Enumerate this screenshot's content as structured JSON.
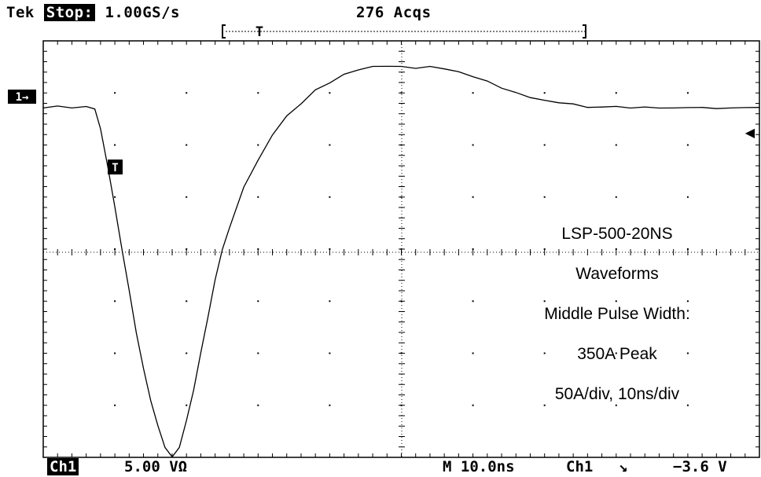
{
  "header": {
    "brand": "Tek",
    "run_state": "Stop:",
    "sample_rate": "1.00GS/s",
    "acquisitions": "276 Acqs",
    "trigger_marker": "T"
  },
  "markers": {
    "channel_ref": "1→",
    "waveform_trigger": "T",
    "trigger_level": "◀"
  },
  "annotation": {
    "line1": "LSP-500-20NS",
    "line2": "Waveforms",
    "line3": "Middle Pulse Width:",
    "line4": "350A Peak",
    "line5": "50A/div, 10ns/div"
  },
  "footer": {
    "channel": "Ch1",
    "scale": "5.00 VΩ",
    "timebase": "M 10.0ns",
    "trigger_source": "Ch1",
    "trigger_slope": "↘",
    "trigger_level": "−3.6 V"
  },
  "chart_data": {
    "type": "line",
    "xlim": [
      -50,
      50
    ],
    "ylim": [
      -4,
      4
    ],
    "x_unit": "ns",
    "grid": true,
    "series": [
      {
        "x": [
          -50,
          -48,
          -46,
          -44,
          -42.8,
          -42,
          -41,
          -40,
          -39,
          -38,
          -37,
          -36,
          -35,
          -34,
          -33,
          -32,
          -31,
          -30,
          -29,
          -28,
          -27,
          -26,
          -25,
          -24,
          -22,
          -20,
          -18,
          -16,
          -14,
          -12,
          -10,
          -8,
          -6,
          -4,
          -2,
          0,
          2,
          4,
          6,
          8,
          10,
          12,
          14,
          16,
          18,
          20,
          22,
          24,
          26,
          28,
          30,
          32,
          34,
          36,
          38,
          40,
          42,
          44,
          46,
          48,
          50
        ],
        "y": [
          2.72,
          2.74,
          2.72,
          2.73,
          2.7,
          2.3,
          1.6,
          0.8,
          0.0,
          -0.8,
          -1.6,
          -2.3,
          -2.9,
          -3.4,
          -3.8,
          -4.0,
          -3.8,
          -3.3,
          -2.7,
          -2.0,
          -1.3,
          -0.6,
          0.0,
          0.4,
          1.2,
          1.7,
          2.2,
          2.55,
          2.8,
          3.05,
          3.2,
          3.35,
          3.45,
          3.5,
          3.52,
          3.5,
          3.48,
          3.5,
          3.47,
          3.4,
          3.32,
          3.22,
          3.1,
          3.0,
          2.92,
          2.85,
          2.82,
          2.78,
          2.73,
          2.72,
          2.75,
          2.7,
          2.74,
          2.7,
          2.72,
          2.71,
          2.73,
          2.69,
          2.72,
          2.71,
          2.73
        ]
      }
    ]
  }
}
